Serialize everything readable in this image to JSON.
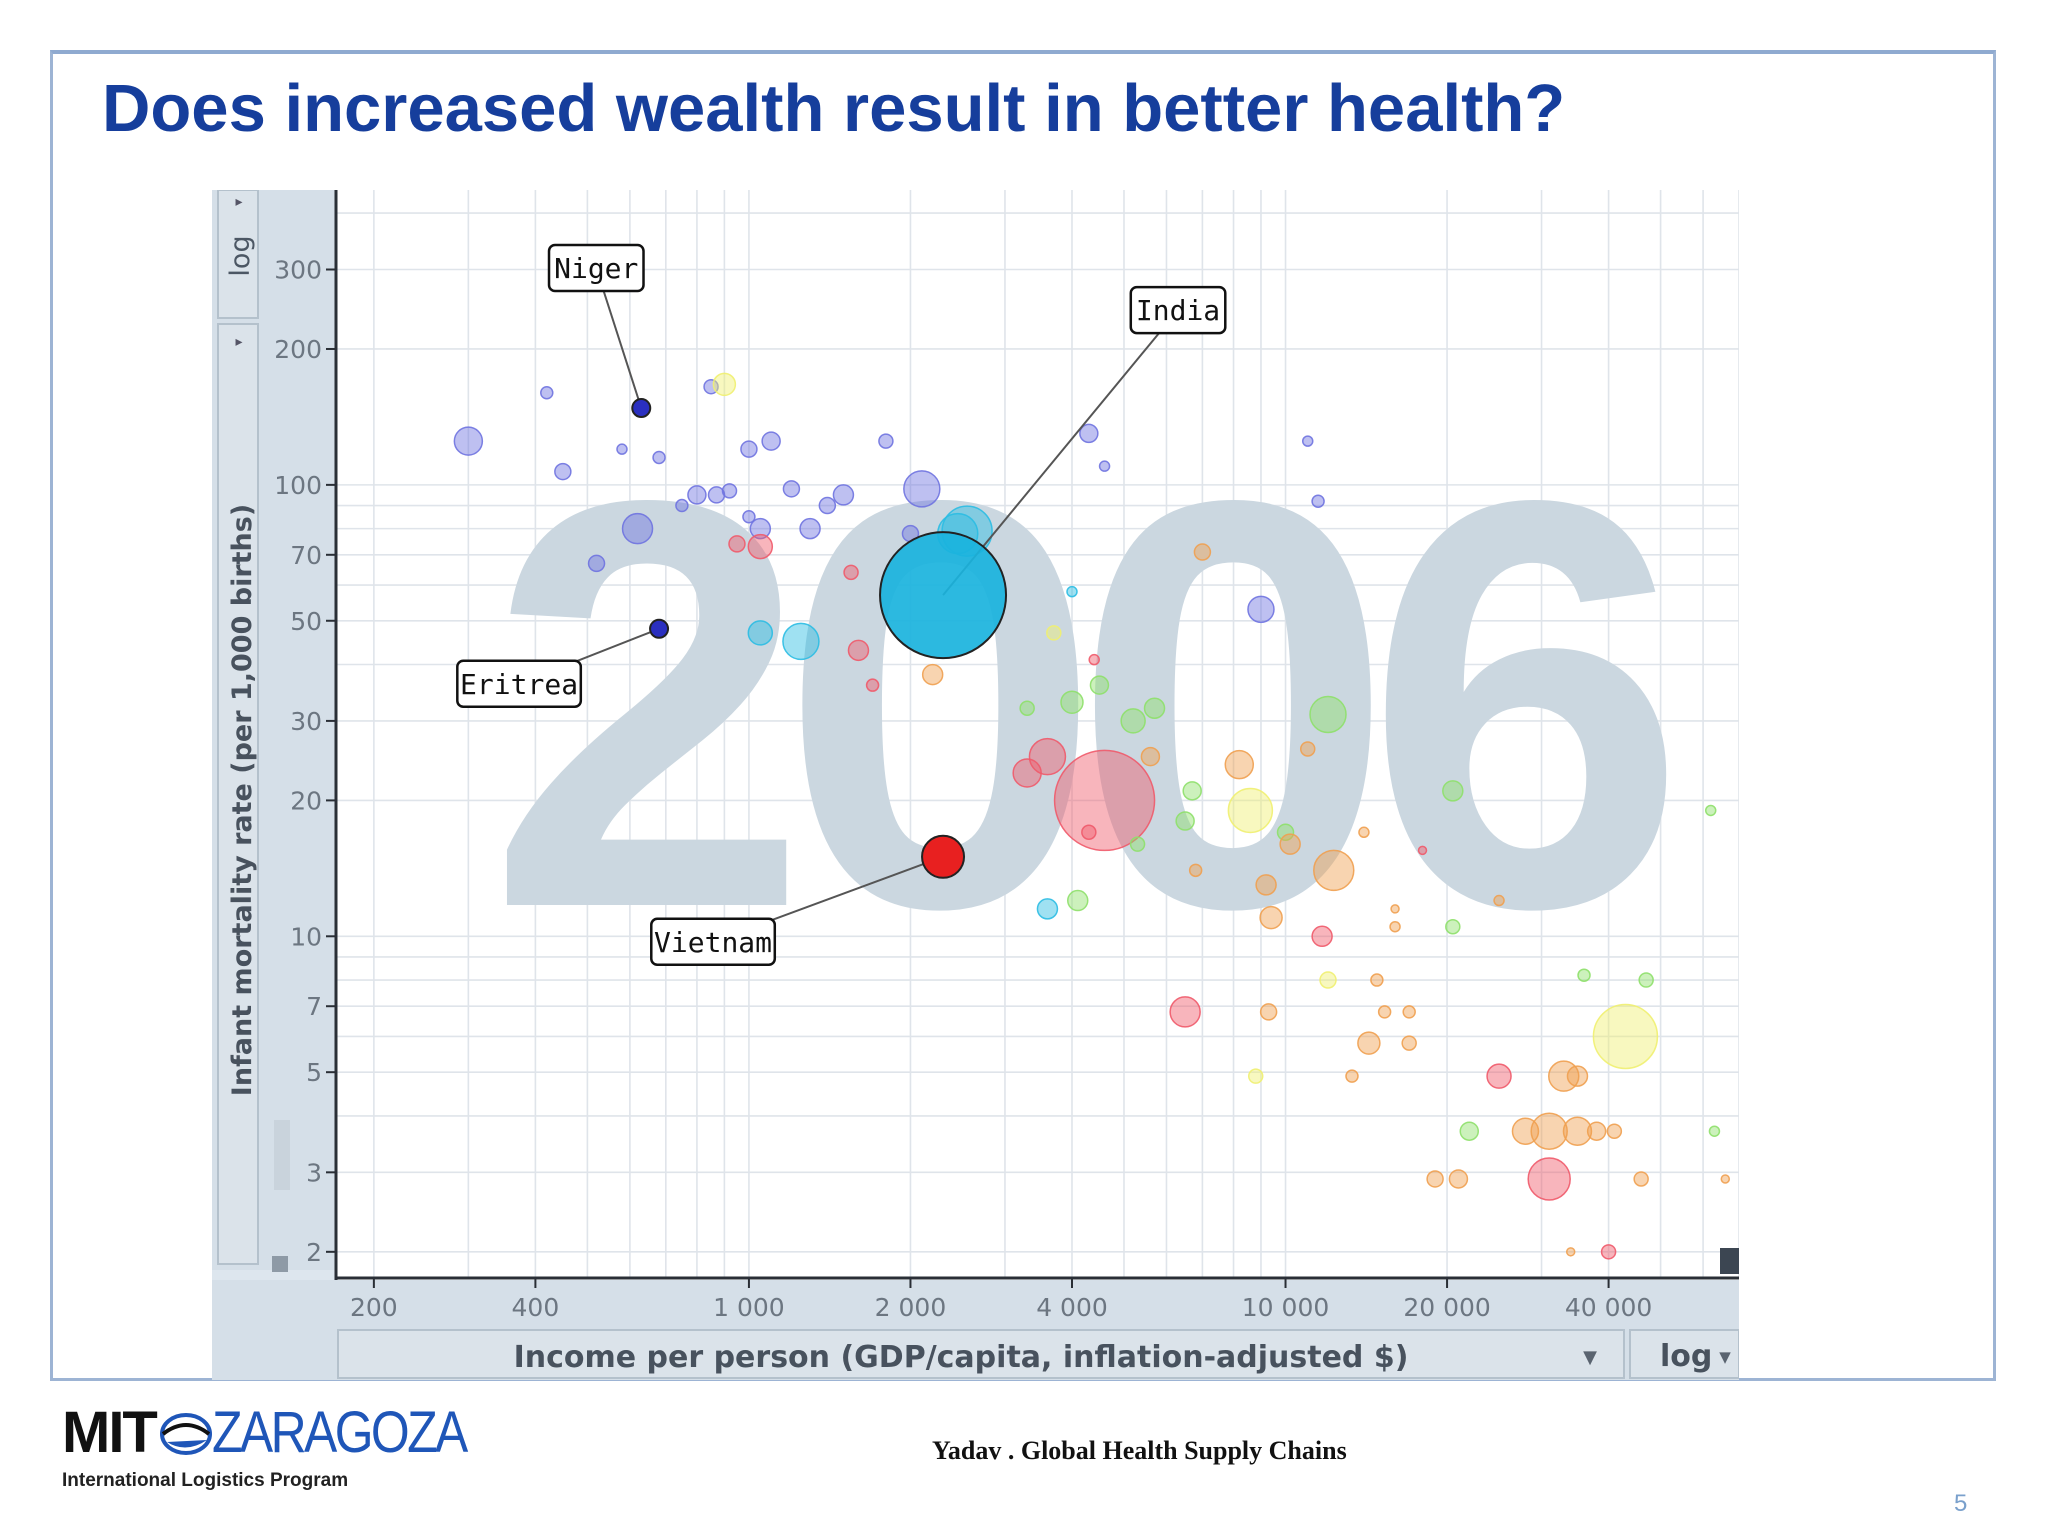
{
  "slide": {
    "title": "Does increased wealth result in better health?",
    "footer": "Yadav . Global Health Supply Chains",
    "page_number": "5"
  },
  "logo": {
    "mit": "MIT",
    "zaragoza": "ZARAGOZA",
    "subtitle": "International Logistics Program"
  },
  "chart_data": {
    "type": "scatter",
    "year_watermark": "2006",
    "xlabel": "Income per person (GDP/capita, inflation-adjusted $)",
    "ylabel": "Infant mortality rate (per 1,000 births)",
    "x_scale": "log",
    "y_scale": "log",
    "x_scale_label": "log",
    "y_scale_label": "log",
    "xlim": [
      170,
      70000
    ],
    "ylim": [
      1.75,
      450
    ],
    "x_ticks": [
      {
        "value": 200,
        "label": "200"
      },
      {
        "value": 400,
        "label": "400"
      },
      {
        "value": 1000,
        "label": "1 000"
      },
      {
        "value": 2000,
        "label": "2 000"
      },
      {
        "value": 4000,
        "label": "4 000"
      },
      {
        "value": 10000,
        "label": "10 000"
      },
      {
        "value": 20000,
        "label": "20 000"
      },
      {
        "value": 40000,
        "label": "40 000"
      }
    ],
    "y_ticks": [
      {
        "value": 2,
        "label": "2"
      },
      {
        "value": 3,
        "label": "3"
      },
      {
        "value": 5,
        "label": "5"
      },
      {
        "value": 7,
        "label": "7"
      },
      {
        "value": 10,
        "label": "10"
      },
      {
        "value": 20,
        "label": "20"
      },
      {
        "value": 30,
        "label": "30"
      },
      {
        "value": 50,
        "label": "50"
      },
      {
        "value": 70,
        "label": "70"
      },
      {
        "value": 100,
        "label": "100"
      },
      {
        "value": 200,
        "label": "200"
      },
      {
        "value": 300,
        "label": "300"
      }
    ],
    "grid": true,
    "colors": {
      "africa": "#6f73e0",
      "south_asia": "#2bbde3",
      "east_asia": "#f05a6a",
      "americas": "#8ee06a",
      "europe": "#f0a050",
      "middle_east": "#f0f070"
    },
    "highlighted": [
      {
        "name": "Niger",
        "x": 630,
        "y": 148,
        "color": "#2a2fc0"
      },
      {
        "name": "India",
        "x": 2300,
        "y": 57,
        "color": "#1ab3dd"
      },
      {
        "name": "Eritrea",
        "x": 680,
        "y": 48,
        "color": "#2a2fc0"
      },
      {
        "name": "Vietnam",
        "x": 2300,
        "y": 15,
        "color": "#e82020"
      }
    ],
    "bubbles": [
      {
        "x": 300,
        "y": 125,
        "r": 14,
        "region": "africa"
      },
      {
        "x": 420,
        "y": 160,
        "r": 6,
        "region": "africa"
      },
      {
        "x": 450,
        "y": 107,
        "r": 8,
        "region": "africa"
      },
      {
        "x": 520,
        "y": 67,
        "r": 8,
        "region": "africa"
      },
      {
        "x": 580,
        "y": 120,
        "r": 5,
        "region": "africa"
      },
      {
        "x": 620,
        "y": 80,
        "r": 15,
        "region": "africa"
      },
      {
        "x": 680,
        "y": 115,
        "r": 6,
        "region": "africa"
      },
      {
        "x": 750,
        "y": 90,
        "r": 6,
        "region": "africa"
      },
      {
        "x": 800,
        "y": 95,
        "r": 9,
        "region": "africa"
      },
      {
        "x": 850,
        "y": 165,
        "r": 7,
        "region": "africa"
      },
      {
        "x": 900,
        "y": 167,
        "r": 11,
        "region": "middle_east"
      },
      {
        "x": 870,
        "y": 95,
        "r": 8,
        "region": "africa"
      },
      {
        "x": 920,
        "y": 97,
        "r": 7,
        "region": "africa"
      },
      {
        "x": 1000,
        "y": 85,
        "r": 6,
        "region": "africa"
      },
      {
        "x": 1050,
        "y": 80,
        "r": 10,
        "region": "africa"
      },
      {
        "x": 1000,
        "y": 120,
        "r": 8,
        "region": "africa"
      },
      {
        "x": 1100,
        "y": 125,
        "r": 9,
        "region": "africa"
      },
      {
        "x": 1200,
        "y": 98,
        "r": 8,
        "region": "africa"
      },
      {
        "x": 1300,
        "y": 80,
        "r": 10,
        "region": "africa"
      },
      {
        "x": 1400,
        "y": 90,
        "r": 8,
        "region": "africa"
      },
      {
        "x": 1500,
        "y": 95,
        "r": 10,
        "region": "africa"
      },
      {
        "x": 1800,
        "y": 125,
        "r": 7,
        "region": "africa"
      },
      {
        "x": 2100,
        "y": 98,
        "r": 18,
        "region": "africa"
      },
      {
        "x": 2000,
        "y": 78,
        "r": 8,
        "region": "africa"
      },
      {
        "x": 1050,
        "y": 73,
        "r": 12,
        "region": "east_asia"
      },
      {
        "x": 950,
        "y": 74,
        "r": 8,
        "region": "east_asia"
      },
      {
        "x": 1550,
        "y": 64,
        "r": 7,
        "region": "east_asia"
      },
      {
        "x": 1600,
        "y": 43,
        "r": 10,
        "region": "east_asia"
      },
      {
        "x": 1250,
        "y": 45,
        "r": 18,
        "region": "south_asia"
      },
      {
        "x": 1050,
        "y": 47,
        "r": 12,
        "region": "south_asia"
      },
      {
        "x": 2450,
        "y": 78,
        "r": 20,
        "region": "south_asia"
      },
      {
        "x": 2550,
        "y": 79,
        "r": 25,
        "region": "south_asia"
      },
      {
        "x": 2200,
        "y": 38,
        "r": 10,
        "region": "europe"
      },
      {
        "x": 1700,
        "y": 36,
        "r": 6,
        "region": "east_asia"
      },
      {
        "x": 3600,
        "y": 25,
        "r": 18,
        "region": "east_asia"
      },
      {
        "x": 3300,
        "y": 23,
        "r": 14,
        "region": "east_asia"
      },
      {
        "x": 4600,
        "y": 20,
        "r": 50,
        "region": "east_asia"
      },
      {
        "x": 4000,
        "y": 33,
        "r": 11,
        "region": "americas"
      },
      {
        "x": 4500,
        "y": 36,
        "r": 9,
        "region": "americas"
      },
      {
        "x": 5200,
        "y": 30,
        "r": 12,
        "region": "americas"
      },
      {
        "x": 5700,
        "y": 32,
        "r": 10,
        "region": "americas"
      },
      {
        "x": 3300,
        "y": 32,
        "r": 7,
        "region": "americas"
      },
      {
        "x": 4300,
        "y": 130,
        "r": 9,
        "region": "africa"
      },
      {
        "x": 4600,
        "y": 110,
        "r": 5,
        "region": "africa"
      },
      {
        "x": 4000,
        "y": 58,
        "r": 5,
        "region": "south_asia"
      },
      {
        "x": 3700,
        "y": 47,
        "r": 7,
        "region": "middle_east"
      },
      {
        "x": 4400,
        "y": 41,
        "r": 5,
        "region": "east_asia"
      },
      {
        "x": 5600,
        "y": 25,
        "r": 9,
        "region": "europe"
      },
      {
        "x": 6700,
        "y": 21,
        "r": 9,
        "region": "americas"
      },
      {
        "x": 6500,
        "y": 18,
        "r": 9,
        "region": "americas"
      },
      {
        "x": 8200,
        "y": 24,
        "r": 14,
        "region": "europe"
      },
      {
        "x": 8600,
        "y": 19,
        "r": 22,
        "region": "middle_east"
      },
      {
        "x": 10000,
        "y": 17,
        "r": 8,
        "region": "americas"
      },
      {
        "x": 10200,
        "y": 16,
        "r": 10,
        "region": "europe"
      },
      {
        "x": 11000,
        "y": 26,
        "r": 7,
        "region": "europe"
      },
      {
        "x": 12000,
        "y": 31,
        "r": 18,
        "region": "americas"
      },
      {
        "x": 12300,
        "y": 14,
        "r": 20,
        "region": "europe"
      },
      {
        "x": 9000,
        "y": 53,
        "r": 13,
        "region": "africa"
      },
      {
        "x": 7000,
        "y": 71,
        "r": 8,
        "region": "europe"
      },
      {
        "x": 11000,
        "y": 125,
        "r": 5,
        "region": "africa"
      },
      {
        "x": 11500,
        "y": 92,
        "r": 6,
        "region": "africa"
      },
      {
        "x": 20500,
        "y": 21,
        "r": 10,
        "region": "americas"
      },
      {
        "x": 9200,
        "y": 13,
        "r": 10,
        "region": "europe"
      },
      {
        "x": 9400,
        "y": 11,
        "r": 11,
        "region": "europe"
      },
      {
        "x": 11700,
        "y": 10,
        "r": 10,
        "region": "east_asia"
      },
      {
        "x": 12000,
        "y": 8,
        "r": 8,
        "region": "middle_east"
      },
      {
        "x": 14800,
        "y": 8,
        "r": 6,
        "region": "europe"
      },
      {
        "x": 6500,
        "y": 6.8,
        "r": 15,
        "region": "east_asia"
      },
      {
        "x": 9300,
        "y": 6.8,
        "r": 8,
        "region": "europe"
      },
      {
        "x": 15300,
        "y": 6.8,
        "r": 6,
        "region": "europe"
      },
      {
        "x": 17000,
        "y": 6.8,
        "r": 6,
        "region": "europe"
      },
      {
        "x": 14300,
        "y": 5.8,
        "r": 11,
        "region": "europe"
      },
      {
        "x": 17000,
        "y": 5.8,
        "r": 7,
        "region": "europe"
      },
      {
        "x": 8800,
        "y": 4.9,
        "r": 7,
        "region": "middle_east"
      },
      {
        "x": 13300,
        "y": 4.9,
        "r": 6,
        "region": "europe"
      },
      {
        "x": 25000,
        "y": 4.9,
        "r": 12,
        "region": "east_asia"
      },
      {
        "x": 33000,
        "y": 4.9,
        "r": 15,
        "region": "europe"
      },
      {
        "x": 35000,
        "y": 4.9,
        "r": 10,
        "region": "europe"
      },
      {
        "x": 43000,
        "y": 6,
        "r": 32,
        "region": "middle_east"
      },
      {
        "x": 47000,
        "y": 8,
        "r": 7,
        "region": "americas"
      },
      {
        "x": 36000,
        "y": 8.2,
        "r": 6,
        "region": "americas"
      },
      {
        "x": 22000,
        "y": 3.7,
        "r": 9,
        "region": "americas"
      },
      {
        "x": 28000,
        "y": 3.7,
        "r": 13,
        "region": "europe"
      },
      {
        "x": 31000,
        "y": 3.7,
        "r": 18,
        "region": "europe"
      },
      {
        "x": 35000,
        "y": 3.7,
        "r": 14,
        "region": "europe"
      },
      {
        "x": 38000,
        "y": 3.7,
        "r": 9,
        "region": "europe"
      },
      {
        "x": 41000,
        "y": 3.7,
        "r": 7,
        "region": "europe"
      },
      {
        "x": 19000,
        "y": 2.9,
        "r": 8,
        "region": "europe"
      },
      {
        "x": 21000,
        "y": 2.9,
        "r": 9,
        "region": "europe"
      },
      {
        "x": 31000,
        "y": 2.9,
        "r": 21,
        "region": "east_asia"
      },
      {
        "x": 46000,
        "y": 2.9,
        "r": 7,
        "region": "europe"
      },
      {
        "x": 40000,
        "y": 2.0,
        "r": 7,
        "region": "east_asia"
      },
      {
        "x": 34000,
        "y": 2.0,
        "r": 4,
        "region": "europe"
      },
      {
        "x": 63000,
        "y": 3.7,
        "r": 5,
        "region": "americas"
      },
      {
        "x": 62000,
        "y": 19,
        "r": 5,
        "region": "americas"
      },
      {
        "x": 66000,
        "y": 2.9,
        "r": 4,
        "region": "europe"
      },
      {
        "x": 3600,
        "y": 11.5,
        "r": 10,
        "region": "south_asia"
      },
      {
        "x": 4100,
        "y": 12,
        "r": 10,
        "region": "americas"
      },
      {
        "x": 5300,
        "y": 16,
        "r": 7,
        "region": "americas"
      },
      {
        "x": 4300,
        "y": 17,
        "r": 7,
        "region": "east_asia"
      },
      {
        "x": 6800,
        "y": 14,
        "r": 6,
        "region": "europe"
      },
      {
        "x": 25000,
        "y": 12,
        "r": 5,
        "region": "europe"
      },
      {
        "x": 20500,
        "y": 10.5,
        "r": 7,
        "region": "americas"
      },
      {
        "x": 16000,
        "y": 10.5,
        "r": 5,
        "region": "europe"
      },
      {
        "x": 16000,
        "y": 11.5,
        "r": 4,
        "region": "europe"
      },
      {
        "x": 18000,
        "y": 15.5,
        "r": 4,
        "region": "east_asia"
      },
      {
        "x": 14000,
        "y": 17,
        "r": 5,
        "region": "europe"
      }
    ]
  }
}
